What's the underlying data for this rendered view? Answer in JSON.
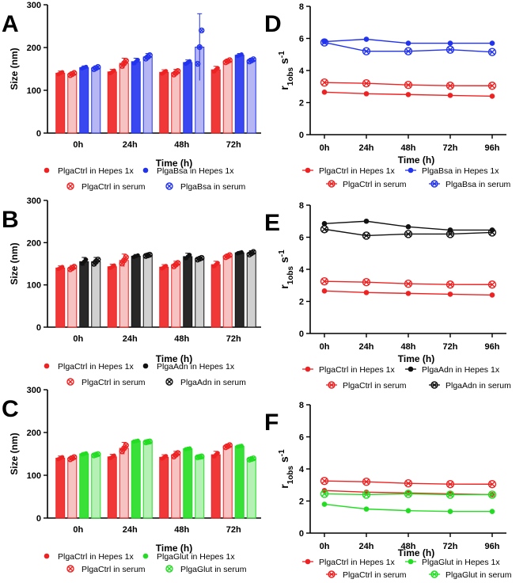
{
  "figure": {
    "left_panels": [
      "A",
      "B",
      "C"
    ],
    "right_panels": [
      "D",
      "E",
      "F"
    ]
  },
  "colors": {
    "ctrl": "#ee2222",
    "ctrl_light": "#f6b7b7",
    "bsa": "#2233ee",
    "bsa_light": "#a9a9f2",
    "adn": "#111111",
    "adn_light": "#c8c8c8",
    "glut": "#22dd22",
    "glut_light": "#a8eda8",
    "axis": "#000000"
  },
  "chart_data": [
    {
      "panel": "A",
      "type": "bar",
      "title": "",
      "xlabel": "Time (h)",
      "ylabel": "Size (nm)",
      "categories": [
        "0h",
        "24h",
        "48h",
        "72h"
      ],
      "ylim": [
        0,
        300
      ],
      "yticks": [
        0,
        100,
        200,
        300
      ],
      "series": [
        {
          "name": "PlgaCtrl in Hepes 1x",
          "values": [
            140,
            143,
            142,
            148
          ],
          "err": [
            5,
            6,
            6,
            8
          ],
          "color": "#ee2222",
          "marker": "dot"
        },
        {
          "name": "PlgaCtrl in serum",
          "values": [
            138,
            163,
            141,
            168
          ],
          "err": [
            5,
            12,
            8,
            5
          ],
          "color": "#ee2222",
          "marker": "crossed"
        },
        {
          "name": "PlgaBsa in Hepes 1x",
          "values": [
            153,
            167,
            165,
            182
          ],
          "err": [
            4,
            8,
            6,
            4
          ],
          "color": "#2233ee",
          "marker": "dot"
        },
        {
          "name": "PlgaBsa in serum",
          "values": [
            152,
            178,
            201,
            170
          ],
          "err": [
            5,
            8,
            78,
            5
          ],
          "color": "#2233ee",
          "marker": "crossed"
        }
      ],
      "legend": [
        "PlgaCtrl in Hepes 1x",
        "PlgaBsa in Hepes 1x",
        "PlgaCtrl in serum",
        "PlgaBsa in serum"
      ]
    },
    {
      "panel": "B",
      "type": "bar",
      "title": "",
      "xlabel": "Time (h)",
      "ylabel": "Size (nm)",
      "categories": [
        "0h",
        "24h",
        "48h",
        "72h"
      ],
      "ylim": [
        0,
        300
      ],
      "yticks": [
        0,
        100,
        200,
        300
      ],
      "series": [
        {
          "name": "PlgaCtrl in Hepes 1x",
          "values": [
            140,
            143,
            142,
            148
          ],
          "err": [
            5,
            6,
            6,
            8
          ],
          "color": "#ee2222",
          "marker": "dot"
        },
        {
          "name": "PlgaCtrl in serum",
          "values": [
            140,
            158,
            148,
            168
          ],
          "err": [
            6,
            15,
            8,
            5
          ],
          "color": "#ee2222",
          "marker": "crossed"
        },
        {
          "name": "PlgaAdn in Hepes 1x",
          "values": [
            155,
            168,
            167,
            176
          ],
          "err": [
            10,
            4,
            8,
            3
          ],
          "color": "#111111",
          "marker": "dot"
        },
        {
          "name": "PlgaAdn in serum",
          "values": [
            155,
            170,
            162,
            175
          ],
          "err": [
            10,
            3,
            4,
            6
          ],
          "color": "#111111",
          "marker": "crossed"
        }
      ],
      "legend": [
        "PlgaCtrl in Hepes 1x",
        "PlgaAdn in Hepes 1x",
        "PlgaCtrl in serum",
        "PlgaAdn in serum"
      ]
    },
    {
      "panel": "C",
      "type": "bar",
      "title": "",
      "xlabel": "Time (h)",
      "ylabel": "Size (nm)",
      "categories": [
        "0h",
        "24h",
        "48h",
        "72h"
      ],
      "ylim": [
        0,
        300
      ],
      "yticks": [
        0,
        100,
        200,
        300
      ],
      "series": [
        {
          "name": "PlgaCtrl in Hepes 1x",
          "values": [
            140,
            143,
            142,
            148
          ],
          "err": [
            5,
            6,
            6,
            8
          ],
          "color": "#ee2222",
          "marker": "dot"
        },
        {
          "name": "PlgaCtrl in serum",
          "values": [
            140,
            163,
            148,
            168
          ],
          "err": [
            5,
            14,
            8,
            5
          ],
          "color": "#ee2222",
          "marker": "crossed"
        },
        {
          "name": "PlgaGlut in Hepes 1x",
          "values": [
            150,
            180,
            162,
            168
          ],
          "err": [
            3,
            2,
            2,
            2
          ],
          "color": "#22dd22",
          "marker": "dot"
        },
        {
          "name": "PlgaGlut in serum",
          "values": [
            148,
            178,
            143,
            138
          ],
          "err": [
            3,
            2,
            2,
            3
          ],
          "color": "#22dd22",
          "marker": "crossed"
        }
      ],
      "legend": [
        "PlgaCtrl in Hepes 1x",
        "PlgaGlut in Hepes 1x",
        "PlgaCtrl in serum",
        "PlgaGlut in serum"
      ]
    },
    {
      "panel": "D",
      "type": "line",
      "title": "",
      "xlabel": "Time (h)",
      "ylabel_main": "r",
      "ylabel_sub": "1obs",
      "ylabel_unit": " s",
      "ylabel_sup": "-1",
      "x": [
        "0h",
        "24h",
        "48h",
        "72h",
        "96h"
      ],
      "ylim": [
        0,
        8
      ],
      "yticks": [
        0,
        2,
        4,
        6,
        8
      ],
      "series": [
        {
          "name": "PlgaCtrl in Hepes 1x",
          "values": [
            2.65,
            2.55,
            2.5,
            2.45,
            2.4
          ],
          "color": "#ee2222",
          "marker": "dot"
        },
        {
          "name": "PlgaCtrl in serum",
          "values": [
            3.25,
            3.2,
            3.1,
            3.05,
            3.05
          ],
          "color": "#ee2222",
          "marker": "crossed"
        },
        {
          "name": "PlgaBsa in Hepes 1x",
          "values": [
            5.8,
            5.95,
            5.7,
            5.7,
            5.7
          ],
          "color": "#2233ee",
          "marker": "dot"
        },
        {
          "name": "PlgaBsa in serum",
          "values": [
            5.75,
            5.2,
            5.2,
            5.3,
            5.15
          ],
          "color": "#2233ee",
          "marker": "crossed"
        }
      ],
      "legend": [
        "PlgaCtrl in Hepes 1x",
        "PlgaBsa in Hepes 1x",
        "PlgaCtrl in serum",
        "PlgaBsa in serum"
      ]
    },
    {
      "panel": "E",
      "type": "line",
      "title": "",
      "xlabel": "Time (h)",
      "ylabel_main": "r",
      "ylabel_sub": "1obs",
      "ylabel_unit": " s",
      "ylabel_sup": "-1",
      "x": [
        "0h",
        "24h",
        "48h",
        "72h",
        "96h"
      ],
      "ylim": [
        0,
        8
      ],
      "yticks": [
        0,
        2,
        4,
        6,
        8
      ],
      "series": [
        {
          "name": "PlgaCtrl in Hepes 1x",
          "values": [
            2.65,
            2.55,
            2.5,
            2.45,
            2.4
          ],
          "color": "#ee2222",
          "marker": "dot"
        },
        {
          "name": "PlgaCtrl in serum",
          "values": [
            3.25,
            3.2,
            3.1,
            3.05,
            3.05
          ],
          "color": "#ee2222",
          "marker": "crossed"
        },
        {
          "name": "PlgaAdn in Hepes 1x",
          "values": [
            6.85,
            7.0,
            6.65,
            6.45,
            6.45
          ],
          "color": "#111111",
          "marker": "dot"
        },
        {
          "name": "PlgaAdn in serum",
          "values": [
            6.5,
            6.1,
            6.2,
            6.2,
            6.3
          ],
          "color": "#111111",
          "marker": "crossed"
        }
      ],
      "legend": [
        "PlgaCtrl in Hepes 1x",
        "PlgaAdn in Hepes 1x",
        "PlgaCtrl in serum",
        "PlgaAdn in serum"
      ]
    },
    {
      "panel": "F",
      "type": "line",
      "title": "",
      "xlabel": "Time (h)",
      "ylabel_main": "r",
      "ylabel_sub": "1obs",
      "ylabel_unit": " s",
      "ylabel_sup": "-1",
      "x": [
        "0h",
        "24h",
        "48h",
        "72h",
        "96h"
      ],
      "ylim": [
        0,
        8
      ],
      "yticks": [
        0,
        2,
        4,
        6,
        8
      ],
      "series": [
        {
          "name": "PlgaCtrl in Hepes 1x",
          "values": [
            2.65,
            2.55,
            2.5,
            2.45,
            2.4
          ],
          "color": "#ee2222",
          "marker": "dot"
        },
        {
          "name": "PlgaCtrl in serum",
          "values": [
            3.25,
            3.2,
            3.1,
            3.05,
            3.05
          ],
          "color": "#ee2222",
          "marker": "crossed"
        },
        {
          "name": "PlgaGlut in Hepes 1x",
          "values": [
            1.8,
            1.5,
            1.4,
            1.35,
            1.35
          ],
          "color": "#22dd22",
          "marker": "dot"
        },
        {
          "name": "PlgaGlut in serum",
          "values": [
            2.45,
            2.4,
            2.45,
            2.4,
            2.4
          ],
          "color": "#22dd22",
          "marker": "crossed"
        }
      ],
      "legend": [
        "PlgaCtrl in Hepes 1x",
        "PlgaGlut in Hepes 1x",
        "PlgaCtrl in serum",
        "PlgaGlut in serum"
      ]
    }
  ]
}
